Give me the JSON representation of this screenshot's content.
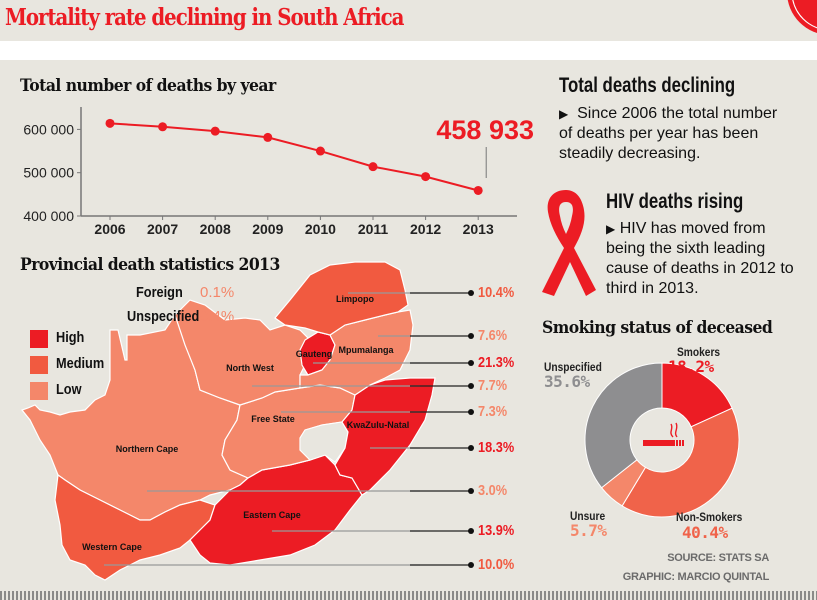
{
  "header": {
    "title": "Mortality rate declining in South Africa"
  },
  "colors": {
    "high": "#ec1c24",
    "medium": "#f15a40",
    "low": "#f4876a",
    "gray": "#8e8e90",
    "background": "#e8e6df"
  },
  "callouts": {
    "deaths": {
      "heading": "Total deaths declining",
      "bullet": "▶",
      "lines": [
        "Since 2006 the total number",
        "of deaths per year has been",
        "steadily decreasing."
      ]
    },
    "hiv": {
      "heading": "HIV deaths rising",
      "bullet": "▶",
      "lines": [
        "HIV has moved from",
        "being the sixth leading",
        "cause of deaths in 2012 to",
        "third in 2013."
      ]
    }
  },
  "map": {
    "title": "Provincial death statistics 2013",
    "extras": [
      {
        "label": "Foreign",
        "value": "0.1%"
      },
      {
        "label": "Unspecified",
        "value": "0.4%"
      }
    ],
    "legend": [
      {
        "label": "High",
        "level": "high"
      },
      {
        "label": "Medium",
        "level": "medium"
      },
      {
        "label": "Low",
        "level": "low"
      }
    ],
    "provinces": [
      {
        "name": "Limpopo",
        "value": "10.4%",
        "level": "medium"
      },
      {
        "name": "Mpumalanga",
        "value": "7.6%",
        "level": "low"
      },
      {
        "name": "Gauteng",
        "value": "21.3%",
        "level": "high"
      },
      {
        "name": "North West",
        "value": "7.7%",
        "level": "low"
      },
      {
        "name": "Free State",
        "value": "7.3%",
        "level": "low"
      },
      {
        "name": "KwaZulu-Natal",
        "value": "18.3%",
        "level": "high"
      },
      {
        "name": "Northern Cape",
        "value": "3.0%",
        "level": "low"
      },
      {
        "name": "Eastern Cape",
        "value": "13.9%",
        "level": "high"
      },
      {
        "name": "Western Cape",
        "value": "10.0%",
        "level": "medium"
      }
    ]
  },
  "credits": {
    "source": "SOURCE: STATS SA",
    "graphic": "GRAPHIC: MARCIO QUINTAL"
  },
  "chart_data": [
    {
      "type": "line",
      "title": "Total number of deaths by year",
      "xlabel": "",
      "ylabel": "",
      "x": [
        "2006",
        "2007",
        "2008",
        "2009",
        "2010",
        "2011",
        "2012",
        "2013"
      ],
      "series": [
        {
          "name": "Total deaths",
          "values": [
            614000,
            606000,
            596000,
            581500,
            550000,
            514000,
            491000,
            458933
          ]
        }
      ],
      "ylim": [
        400000,
        650000
      ],
      "yticks": [
        400000,
        500000,
        600000
      ],
      "ytick_labels": [
        "400 000",
        "500 000",
        "600 000"
      ],
      "annotation": {
        "x": "2013",
        "text": "458 933"
      },
      "grid": false,
      "color": "#ec1c24"
    },
    {
      "type": "pie",
      "title": "Smoking status of deceased",
      "donut": true,
      "center_icon": "cigarette-icon",
      "slices": [
        {
          "label": "Smokers",
          "value": 18.2,
          "display": "18.2%",
          "color": "#ec1c24"
        },
        {
          "label": "Non-Smokers",
          "value": 40.4,
          "display": "40.4%",
          "color": "#f0634a"
        },
        {
          "label": "Unsure",
          "value": 5.7,
          "display": "5.7%",
          "color": "#f4876a"
        },
        {
          "label": "Unspecified",
          "value": 35.6,
          "display": "35.6%",
          "color": "#8e8e90"
        }
      ]
    }
  ]
}
